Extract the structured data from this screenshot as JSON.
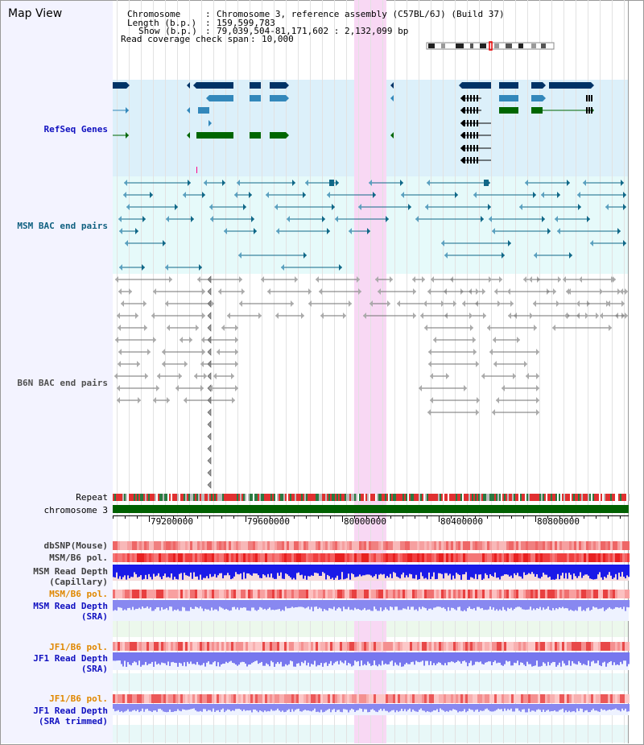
{
  "title": "Map View",
  "info": {
    "chromosome_label": "Chromosome",
    "chromosome_value": "Chromosome 3, reference assembly (C57BL/6J) (Build 37)",
    "length_label": "Length (b.p.)",
    "length_value": "159,599,783",
    "show_label": "Show (b.p.)",
    "show_value": "79,039,504-81,171,602 : 2,132,099 bp",
    "coverage_label": "Read coverage check span",
    "coverage_value": "10,000"
  },
  "tracks": {
    "refseq": "RefSeq Genes",
    "msm_bac": "MSM BAC end pairs",
    "b6n_bac": "B6N BAC end pairs",
    "repeat": "Repeat",
    "chromosome": "chromosome 3",
    "dbsnp": "dbSNP(Mouse)",
    "msm_b6_pol": "MSM/B6 pol.",
    "msm_depth_cap_1": "MSM Read Depth",
    "msm_depth_cap_2": "(Capillary)",
    "msm_b6_pol2": "MSM/B6 pol.",
    "msm_depth_sra_1": "MSM Read Depth",
    "msm_depth_sra_2": "(SRA)",
    "jf1_b6_pol": "JF1/B6 pol.",
    "jf1_depth_sra_1": "JF1 Read Depth",
    "jf1_depth_sra_2": "(SRA)",
    "jf1_b6_pol2": "JF1/B6 pol.",
    "jf1_depth_trim_1": "JF1 Read Depth",
    "jf1_depth_trim_2": "(SRA trimmed)"
  },
  "axis_ticks": [
    "79200000",
    "79600000",
    "80000000",
    "80400000",
    "80800000"
  ],
  "colors": {
    "refseq_bg": "#dcf0fa",
    "msm_bg": "#e6fafa",
    "highlight": "#f8d8f4",
    "chrom_bar": "#006000",
    "gene_dark": "#003366",
    "gene_mid": "#3388bb",
    "gene_green": "#006600",
    "msm_line": "#106888",
    "b6n_line": "#707070"
  }
}
